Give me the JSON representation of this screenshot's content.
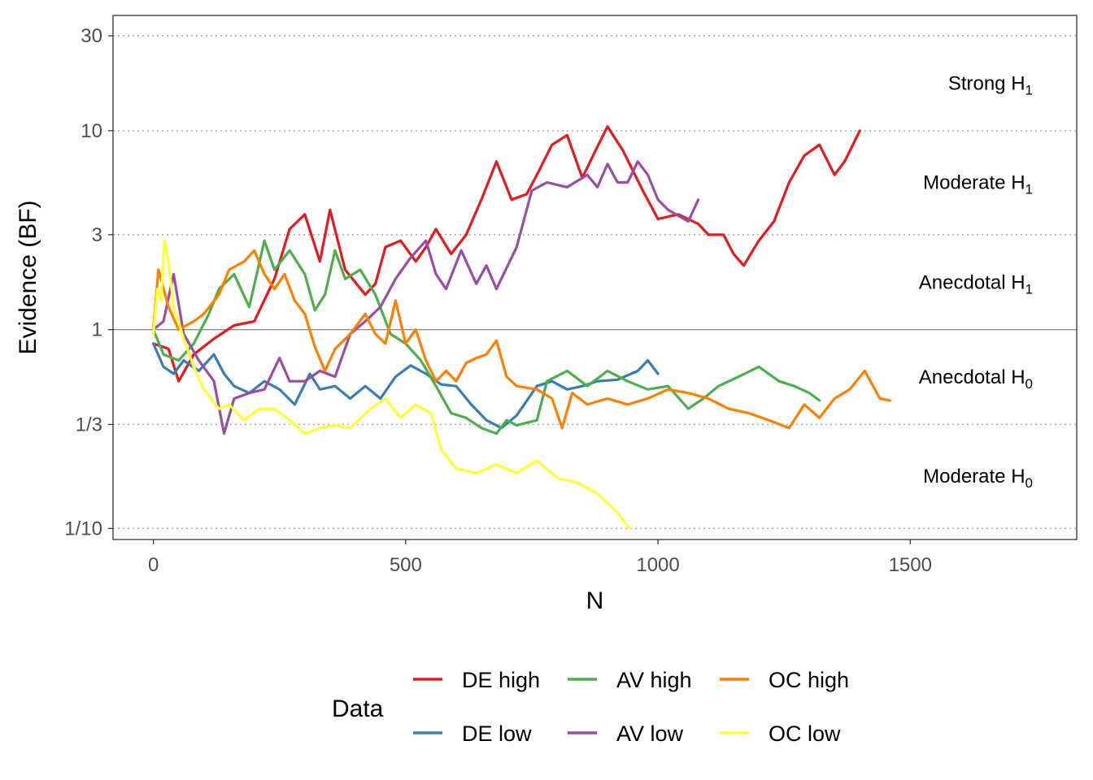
{
  "chart_data": {
    "type": "line",
    "xlabel": "N",
    "ylabel": "Evidence (BF)",
    "y_scale": "log",
    "xlim": [
      -80,
      1830
    ],
    "ylim": [
      0.088,
      38
    ],
    "x_ticks": [
      {
        "value": 0,
        "label": "0"
      },
      {
        "value": 500,
        "label": "500"
      },
      {
        "value": 1000,
        "label": "1000"
      },
      {
        "value": 1500,
        "label": "1500"
      }
    ],
    "y_ticks": [
      {
        "value": 30,
        "label": "30"
      },
      {
        "value": 10,
        "label": "10"
      },
      {
        "value": 3,
        "label": "3"
      },
      {
        "value": 1,
        "label": "1"
      },
      {
        "value": 0.3333,
        "label": "1/3"
      },
      {
        "value": 0.1,
        "label": "1/10"
      }
    ],
    "reference_line": 1,
    "grid": "dotted horizontal at 30, 10, 3, 1/3, 1/10",
    "region_labels": [
      {
        "main": "Strong H",
        "sub": "1",
        "y": 17.3
      },
      {
        "main": "Moderate H",
        "sub": "1",
        "y": 5.5
      },
      {
        "main": "Anecdotal H",
        "sub": "1",
        "y": 1.73
      },
      {
        "main": "Anecdotal H",
        "sub": "0",
        "y": 0.578
      },
      {
        "main": "Moderate H",
        "sub": "0",
        "y": 0.183
      }
    ],
    "legend_title": "Data",
    "legend_position": "bottom",
    "series": [
      {
        "name": "DE high",
        "color": "#E41A1C",
        "x": [
          0,
          30,
          50,
          80,
          120,
          160,
          200,
          240,
          270,
          300,
          330,
          350,
          380,
          420,
          440,
          460,
          490,
          520,
          540,
          560,
          590,
          620,
          650,
          680,
          710,
          740,
          760,
          790,
          820,
          850,
          880,
          900,
          930,
          970,
          1000,
          1040,
          1080,
          1100,
          1130,
          1150,
          1170,
          1200,
          1230,
          1260,
          1290,
          1320,
          1350,
          1370,
          1400
        ],
        "y": [
          0.85,
          0.8,
          0.55,
          0.75,
          0.9,
          1.05,
          1.1,
          1.8,
          3.2,
          3.8,
          2.2,
          4.0,
          2.0,
          1.5,
          1.7,
          2.6,
          2.8,
          2.2,
          2.6,
          3.2,
          2.4,
          3.0,
          4.5,
          7.0,
          4.5,
          4.8,
          6.0,
          8.5,
          9.5,
          5.8,
          8.3,
          10.5,
          8.0,
          5.0,
          3.6,
          3.8,
          3.4,
          3.0,
          3.0,
          2.4,
          2.1,
          2.8,
          3.5,
          5.5,
          7.5,
          8.5,
          6.0,
          7.0,
          10.0
        ]
      },
      {
        "name": "DE low",
        "color": "#377EB8",
        "x": [
          0,
          20,
          40,
          60,
          90,
          120,
          140,
          160,
          190,
          220,
          250,
          280,
          310,
          330,
          360,
          390,
          420,
          450,
          480,
          510,
          540,
          570,
          600,
          630,
          660,
          690,
          720,
          760,
          790,
          820,
          850,
          880,
          920,
          960,
          980,
          1000
        ],
        "y": [
          0.85,
          0.65,
          0.6,
          0.7,
          0.62,
          0.75,
          0.6,
          0.52,
          0.48,
          0.55,
          0.5,
          0.42,
          0.6,
          0.5,
          0.52,
          0.45,
          0.52,
          0.45,
          0.58,
          0.66,
          0.6,
          0.53,
          0.52,
          0.42,
          0.35,
          0.32,
          0.37,
          0.52,
          0.55,
          0.5,
          0.52,
          0.55,
          0.56,
          0.62,
          0.7,
          0.6
        ]
      },
      {
        "name": "AV high",
        "color": "#4DAF4A",
        "x": [
          0,
          20,
          50,
          80,
          110,
          130,
          160,
          190,
          220,
          240,
          270,
          300,
          320,
          340,
          360,
          380,
          410,
          440,
          470,
          500,
          530,
          560,
          590,
          620,
          650,
          680,
          700,
          720,
          740,
          760,
          780,
          820,
          860,
          900,
          940,
          980,
          1020,
          1060,
          1090,
          1120,
          1160,
          1200,
          1240,
          1270,
          1300,
          1320
        ],
        "y": [
          1.0,
          0.75,
          0.7,
          0.85,
          1.2,
          1.6,
          1.9,
          1.3,
          2.8,
          2.0,
          2.5,
          1.9,
          1.25,
          1.5,
          2.5,
          1.8,
          2.0,
          1.5,
          0.95,
          0.85,
          0.7,
          0.52,
          0.38,
          0.36,
          0.32,
          0.3,
          0.35,
          0.33,
          0.34,
          0.35,
          0.55,
          0.62,
          0.52,
          0.62,
          0.55,
          0.5,
          0.52,
          0.4,
          0.45,
          0.52,
          0.58,
          0.65,
          0.55,
          0.52,
          0.48,
          0.44
        ]
      },
      {
        "name": "AV low",
        "color": "#984EA3",
        "x": [
          0,
          20,
          40,
          60,
          90,
          120,
          140,
          160,
          190,
          220,
          250,
          270,
          300,
          330,
          360,
          390,
          420,
          450,
          480,
          510,
          540,
          560,
          580,
          610,
          640,
          660,
          680,
          720,
          750,
          780,
          820,
          860,
          880,
          900,
          920,
          940,
          960,
          980,
          1000,
          1020,
          1060,
          1080
        ],
        "y": [
          1.0,
          1.1,
          1.9,
          0.95,
          0.7,
          0.55,
          0.3,
          0.45,
          0.48,
          0.5,
          0.72,
          0.55,
          0.55,
          0.62,
          0.58,
          0.95,
          1.1,
          1.3,
          1.8,
          2.3,
          2.8,
          1.9,
          1.6,
          2.5,
          1.7,
          2.1,
          1.6,
          2.6,
          5.0,
          5.5,
          5.2,
          6.0,
          5.2,
          6.8,
          5.5,
          5.5,
          7.0,
          6.0,
          4.5,
          4.0,
          3.5,
          4.5
        ]
      },
      {
        "name": "OC high",
        "color": "#FF7F00",
        "x": [
          0,
          10,
          30,
          50,
          80,
          100,
          130,
          150,
          180,
          200,
          220,
          240,
          260,
          280,
          300,
          320,
          340,
          360,
          390,
          420,
          440,
          460,
          480,
          500,
          520,
          540,
          560,
          580,
          600,
          620,
          640,
          660,
          680,
          700,
          720,
          760,
          790,
          810,
          830,
          860,
          900,
          940,
          980,
          1020,
          1060,
          1100,
          1140,
          1180,
          1220,
          1260,
          1290,
          1320,
          1350,
          1380,
          1410,
          1440,
          1460
        ],
        "y": [
          1.0,
          2.0,
          1.3,
          1.0,
          1.1,
          1.2,
          1.5,
          2.0,
          2.2,
          2.5,
          1.9,
          1.6,
          1.9,
          1.4,
          1.2,
          0.82,
          0.62,
          0.8,
          0.95,
          1.2,
          0.95,
          0.85,
          1.4,
          0.85,
          1.0,
          0.7,
          0.55,
          0.62,
          0.55,
          0.68,
          0.72,
          0.75,
          0.88,
          0.58,
          0.52,
          0.5,
          0.45,
          0.32,
          0.48,
          0.42,
          0.45,
          0.42,
          0.45,
          0.5,
          0.48,
          0.45,
          0.4,
          0.38,
          0.35,
          0.32,
          0.42,
          0.36,
          0.45,
          0.5,
          0.62,
          0.45,
          0.44
        ]
      },
      {
        "name": "OC low",
        "color": "#FFFF33",
        "x": [
          0,
          8,
          15,
          22,
          30,
          40,
          60,
          80,
          100,
          130,
          150,
          180,
          210,
          240,
          270,
          300,
          330,
          360,
          390,
          430,
          460,
          490,
          520,
          550,
          570,
          600,
          640,
          680,
          720,
          760,
          800,
          840,
          880,
          920,
          944
        ],
        "y": [
          0.95,
          1.6,
          1.4,
          2.8,
          2.2,
          1.3,
          0.9,
          0.65,
          0.5,
          0.4,
          0.42,
          0.35,
          0.4,
          0.4,
          0.35,
          0.3,
          0.32,
          0.33,
          0.32,
          0.4,
          0.45,
          0.36,
          0.42,
          0.38,
          0.25,
          0.2,
          0.19,
          0.21,
          0.19,
          0.22,
          0.18,
          0.17,
          0.15,
          0.12,
          0.1
        ]
      }
    ]
  }
}
